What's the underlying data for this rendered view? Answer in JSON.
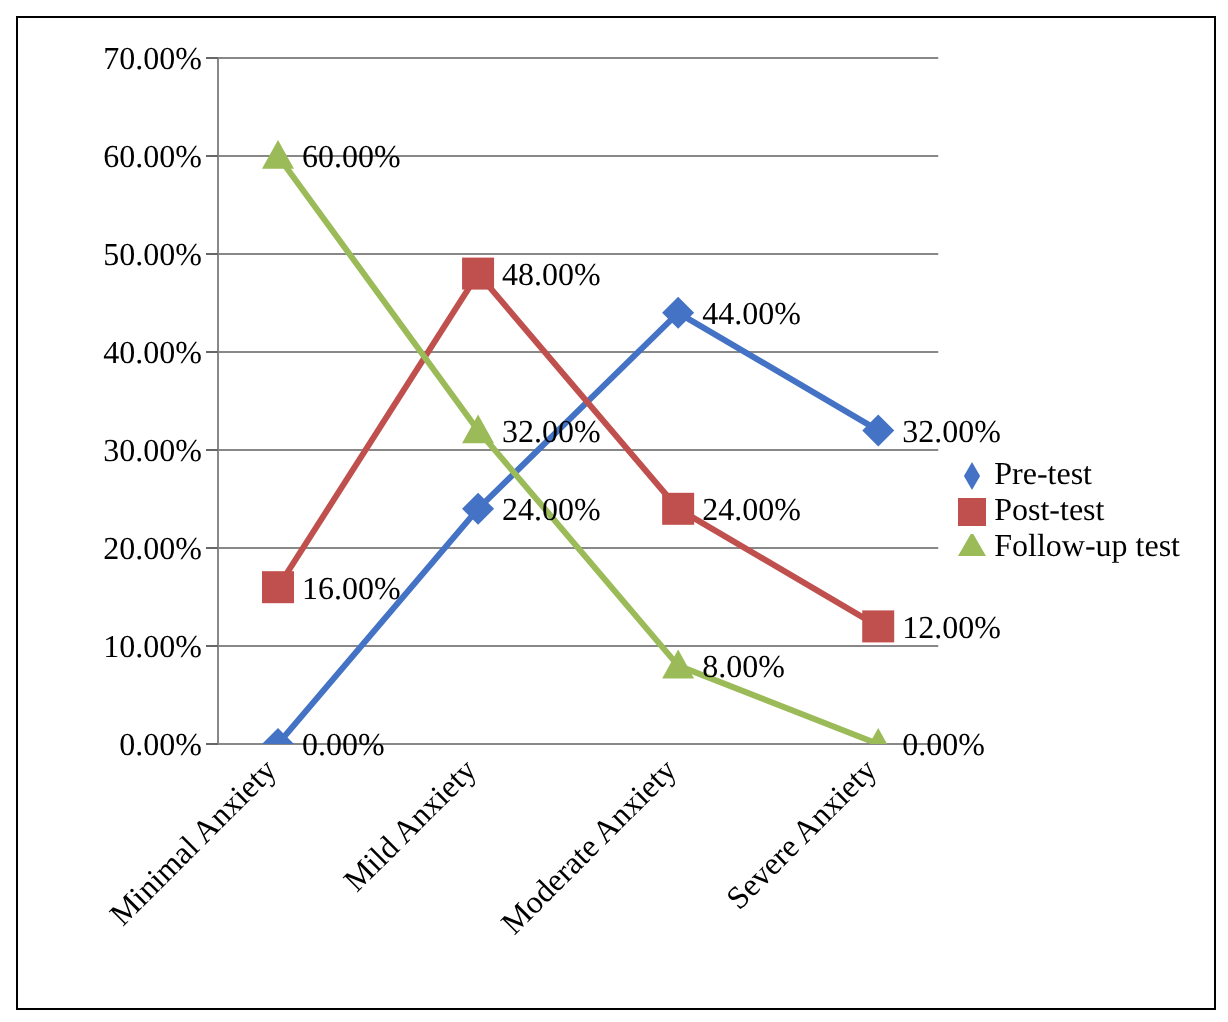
{
  "chart_data": {
    "type": "line",
    "categories": [
      "Minimal Anxiety",
      "Mild Anxiety",
      "Moderate Anxiety",
      "Severe Anxiety"
    ],
    "series": [
      {
        "name": "Pre-test",
        "color": "#4472c4",
        "marker": "diamond",
        "values": [
          0,
          24,
          44,
          32
        ],
        "value_labels": [
          "0.00%",
          "24.00%",
          "44.00%",
          "32.00%"
        ]
      },
      {
        "name": "Post-test",
        "color": "#c0504d",
        "marker": "square",
        "values": [
          16,
          48,
          24,
          12
        ],
        "value_labels": [
          "16.00%",
          "48.00%",
          "24.00%",
          "12.00%"
        ]
      },
      {
        "name": "Follow-up test",
        "color": "#9bbb59",
        "marker": "triangle",
        "values": [
          60,
          32,
          8,
          0
        ],
        "value_labels": [
          "60.00%",
          "32.00%",
          "8.00%",
          "0.00%"
        ]
      }
    ],
    "ylim": [
      0,
      70
    ],
    "yticks": [
      {
        "value": 0,
        "label": "0.00%"
      },
      {
        "value": 10,
        "label": "10.00%"
      },
      {
        "value": 20,
        "label": "20.00%"
      },
      {
        "value": 30,
        "label": "30.00%"
      },
      {
        "value": 40,
        "label": "40.00%"
      },
      {
        "value": 50,
        "label": "50.00%"
      },
      {
        "value": 60,
        "label": "60.00%"
      },
      {
        "value": 70,
        "label": "70.00%"
      }
    ],
    "grid": "y",
    "legend": "right"
  }
}
